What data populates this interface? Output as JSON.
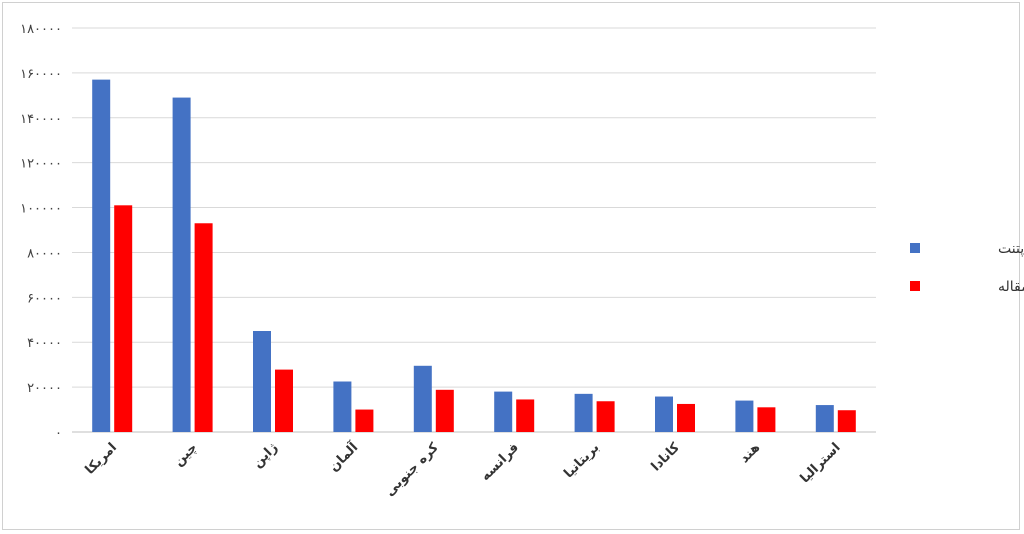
{
  "chart_data": {
    "type": "bar",
    "categories": [
      "امریکا",
      "چین",
      "ژاپن",
      "آلمان",
      "کره جنوبی",
      "فرانسه",
      "بریتانیا",
      "کانادا",
      "هند",
      "استرالیا"
    ],
    "series": [
      {
        "name": "تعداد پتنت",
        "color": "#4472C4",
        "values": [
          157000,
          149000,
          45000,
          22500,
          29500,
          18000,
          17000,
          15800,
          14000,
          12000
        ]
      },
      {
        "name": "تعداد مقاله",
        "color": "#FF0000",
        "values": [
          101000,
          93000,
          27800,
          10000,
          18800,
          14500,
          13700,
          12500,
          11000,
          9700
        ]
      }
    ],
    "yticks": [
      "۰",
      "۲۰۰۰۰",
      "۴۰۰۰۰",
      "۶۰۰۰۰",
      "۸۰۰۰۰",
      "۱۰۰۰۰۰",
      "۱۲۰۰۰۰",
      "۱۴۰۰۰۰",
      "۱۶۰۰۰۰",
      "۱۸۰۰۰۰"
    ],
    "ylim": [
      0,
      180000
    ],
    "grid": true,
    "legend_position": "right"
  }
}
